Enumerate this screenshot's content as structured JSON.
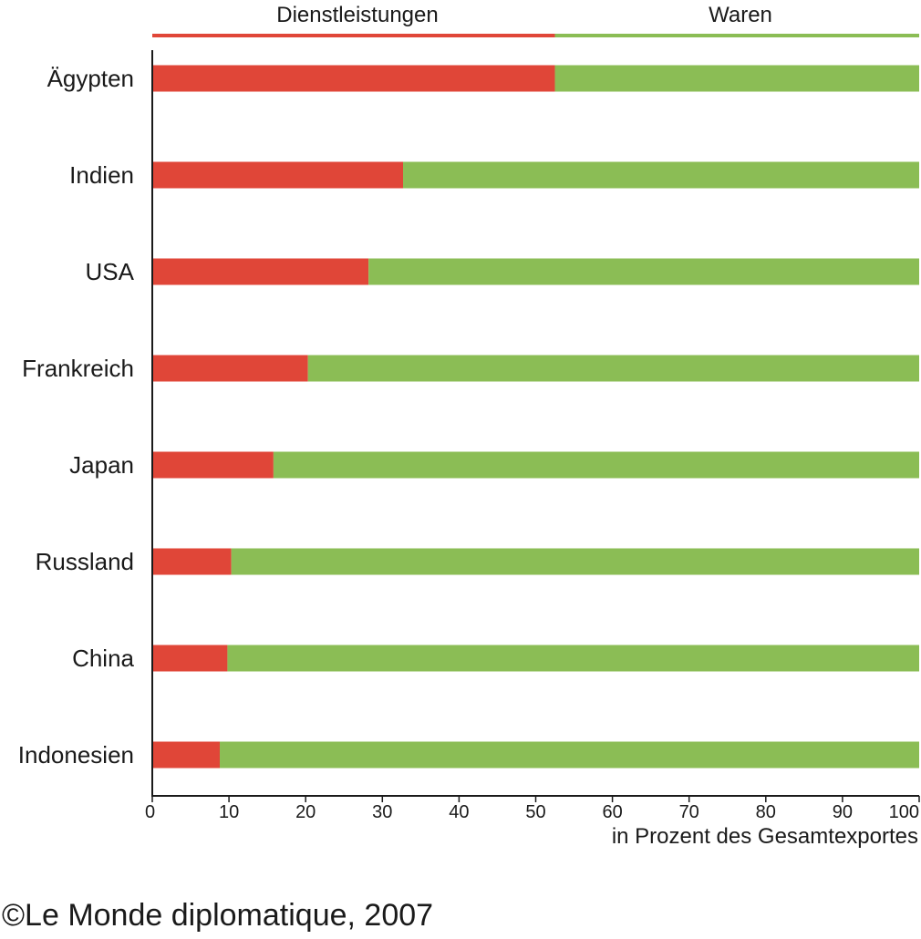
{
  "chart_data": {
    "type": "bar",
    "stacked": true,
    "orientation": "horizontal",
    "categories": [
      "Ägypten",
      "Indien",
      "USA",
      "Frankreich",
      "Japan",
      "Russland",
      "China",
      "Indonesien"
    ],
    "series": [
      {
        "name": "Dienstleistungen",
        "color": "#e04638",
        "values": [
          52.5,
          32.7,
          28.2,
          20.3,
          15.8,
          10.3,
          9.8,
          8.8
        ]
      },
      {
        "name": "Waren",
        "color": "#8bbd55",
        "values": [
          47.5,
          67.3,
          71.8,
          79.7,
          84.2,
          89.7,
          90.2,
          91.2
        ]
      }
    ],
    "xlim": [
      0,
      100
    ],
    "xticks": [
      "0",
      "10",
      "20",
      "30",
      "40",
      "50",
      "60",
      "70",
      "80",
      "90",
      "100"
    ],
    "xlabel": "in Prozent des Gesamtexportes",
    "legend_position": "top"
  },
  "source": "©Le Monde diplomatique, 2007"
}
